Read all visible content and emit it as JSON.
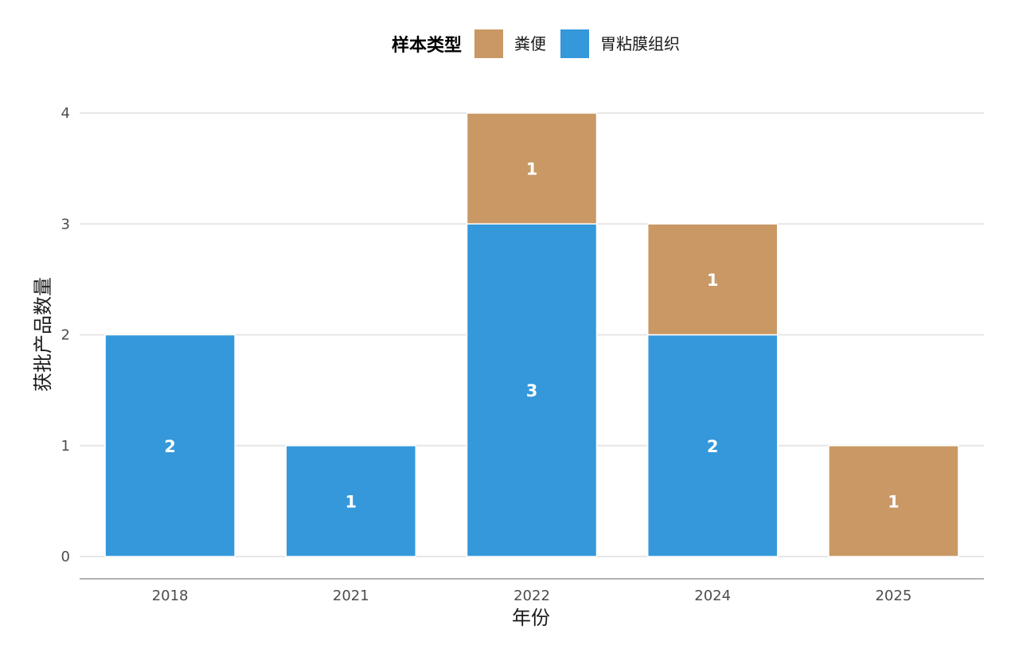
{
  "chart_data": {
    "type": "bar",
    "stacked": true,
    "categories": [
      "2018",
      "2021",
      "2022",
      "2024",
      "2025"
    ],
    "series": [
      {
        "name": "胃粘膜组织",
        "color": "#3498db",
        "values": [
          2,
          1,
          3,
          2,
          0
        ]
      },
      {
        "name": "粪便",
        "color": "#c99865",
        "values": [
          0,
          0,
          1,
          1,
          1
        ]
      }
    ],
    "xlabel": "年份",
    "ylabel": "获批产品数量",
    "ylim": [
      0,
      4
    ],
    "yticks": [
      "0",
      "1",
      "2",
      "3",
      "4"
    ],
    "grid": true,
    "legend": {
      "title": "样本类型",
      "position": "top",
      "items": [
        "粪便",
        "胃粘膜组织"
      ]
    }
  }
}
